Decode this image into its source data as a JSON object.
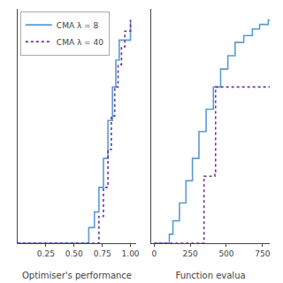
{
  "chart_data": [
    {
      "type": "step",
      "x_label": "Optimiser's performance",
      "xlim": [
        0.0,
        1.05
      ],
      "xticks": [
        0.25,
        {
          "value": 0.5,
          "label": "0.50"
        },
        0.75,
        {
          "value": 1.0,
          "label": "1.00"
        }
      ],
      "ylim": [
        0.0,
        1.05
      ],
      "tick_labels": "x",
      "grid": false,
      "legend": "upper left",
      "series": [
        {
          "name": "CMA λ = 8",
          "color": "#5b9bd5",
          "line_style": "solid",
          "x": [
            0.0,
            0.6,
            0.63,
            0.68,
            0.72,
            0.76,
            0.8,
            0.84,
            0.87,
            0.9,
            1.0,
            1.0
          ],
          "values": [
            0.0,
            0.0,
            0.07,
            0.14,
            0.25,
            0.38,
            0.55,
            0.7,
            0.82,
            0.91,
            1.0,
            1.0
          ]
        },
        {
          "name": "CMA λ = 40",
          "color": "#7030a0",
          "line_style": "dotted",
          "x": [
            0.0,
            0.68,
            0.72,
            0.76,
            0.8,
            0.83,
            0.86,
            0.89,
            0.92,
            0.95,
            1.0,
            1.0
          ],
          "values": [
            0.0,
            0.0,
            0.12,
            0.25,
            0.42,
            0.57,
            0.7,
            0.8,
            0.88,
            0.95,
            1.0,
            1.0
          ]
        }
      ]
    },
    {
      "type": "step",
      "x_label": "Function evalua",
      "xlim": [
        -20,
        800
      ],
      "xticks": [
        0,
        250,
        500,
        750
      ],
      "ylim": [
        0.0,
        1.05
      ],
      "tick_labels": "x",
      "grid": false,
      "series": [
        {
          "name": "CMA λ = 8",
          "color": "#5b9bd5",
          "line_style": "solid",
          "x": [
            0,
            105,
            130,
            175,
            220,
            265,
            310,
            360,
            410,
            460,
            510,
            560,
            620,
            680,
            730,
            790,
            800
          ],
          "values": [
            0.0,
            0.04,
            0.1,
            0.18,
            0.28,
            0.38,
            0.5,
            0.6,
            0.7,
            0.78,
            0.84,
            0.9,
            0.93,
            0.96,
            0.98,
            1.0,
            1.0
          ]
        },
        {
          "name": "CMA λ = 40",
          "color": "#7030a0",
          "line_style": "dotted",
          "x": [
            0,
            340,
            345,
            420,
            425,
            800
          ],
          "values": [
            0.0,
            0.0,
            0.3,
            0.32,
            0.7,
            0.7
          ]
        }
      ]
    }
  ]
}
